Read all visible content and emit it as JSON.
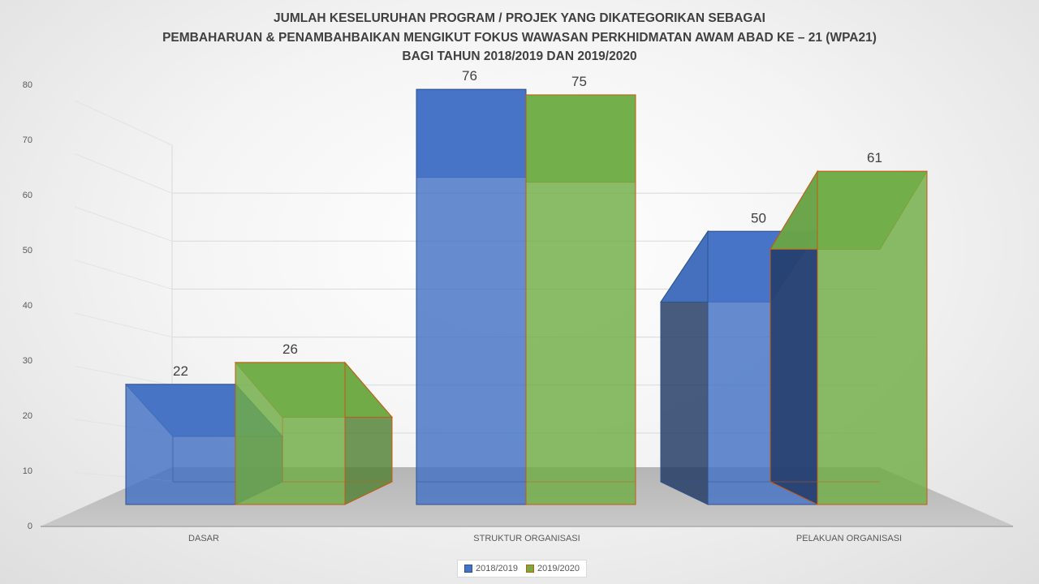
{
  "chart_data": {
    "type": "bar",
    "title": [
      "JUMLAH KESELURUHAN PROGRAM / PROJEK YANG DIKATEGORIKAN SEBAGAI",
      "PEMBAHARUAN & PENAMBAHBAIKAN MENGIKUT FOKUS WAWASAN PERKHIDMATAN AWAM ABAD KE – 21 (WPA21)",
      "BAGI TAHUN 2018/2019 DAN 2019/2020"
    ],
    "categories": [
      "DASAR",
      "STRUKTUR ORGANISASI",
      "PELAKUAN ORGANISASI"
    ],
    "series": [
      {
        "name": "2018/2019",
        "values": [
          22,
          76,
          50
        ],
        "color": "#4472c4"
      },
      {
        "name": "2019/2020",
        "values": [
          26,
          75,
          61
        ],
        "color": "#70ad47"
      }
    ],
    "ylim": [
      0,
      80
    ],
    "yticks": [
      "0",
      "10",
      "20",
      "30",
      "40",
      "50",
      "60",
      "70",
      "80"
    ],
    "grid": true,
    "legend": "bottom",
    "style": "3d-perspective"
  }
}
